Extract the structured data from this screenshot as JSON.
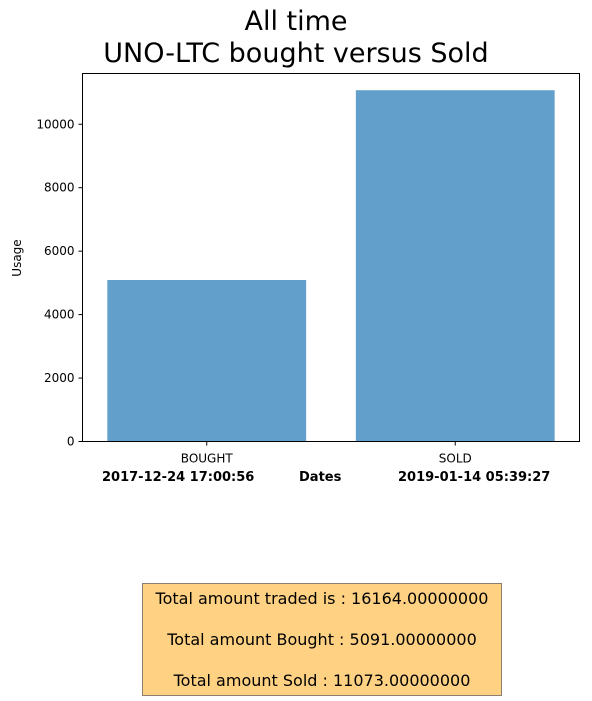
{
  "chart_data": {
    "type": "bar",
    "title_lines": [
      "All time",
      "UNO-LTC bought versus Sold"
    ],
    "categories": [
      "BOUGHT",
      "SOLD"
    ],
    "values": [
      5091,
      11073
    ],
    "ylabel": "Usage",
    "ylim": [
      0,
      11600
    ],
    "yticks": [
      0,
      2000,
      4000,
      6000,
      8000,
      10000
    ],
    "bar_color": "#62a0cb",
    "grid": false,
    "date_labels": {
      "start": "2017-12-24 17:00:56",
      "middle": "Dates",
      "end": "2019-01-14 05:39:27"
    }
  },
  "summary": {
    "traded": "Total amount traded is : 16164.00000000",
    "bought": "Total amount Bought : 5091.00000000",
    "sold": "Total amount Sold : 11073.00000000",
    "background": "#ffd183"
  }
}
